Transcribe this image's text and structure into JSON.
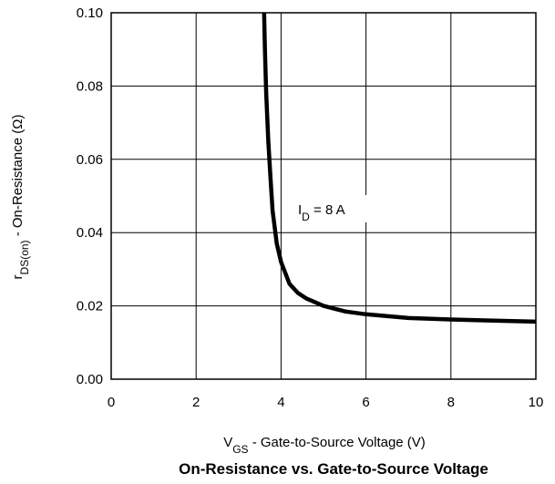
{
  "chart_data": {
    "type": "line",
    "title": "On-Resistance vs. Gate-to-Source Voltage",
    "xlabel": {
      "main": "V",
      "sub": "GS",
      "rest": " -  Gate-to-Source Voltage (V)"
    },
    "ylabel": {
      "main": "r",
      "sub": "DS(on)",
      "rest": " -   On-Resistance (Ω)"
    },
    "xlim": [
      0,
      10
    ],
    "ylim": [
      0,
      0.1
    ],
    "grid": true,
    "x_ticks": [
      0,
      2,
      4,
      6,
      8,
      10
    ],
    "x_tick_labels": [
      "0",
      "2",
      "4",
      "6",
      "8",
      "10"
    ],
    "y_ticks": [
      0,
      0.02,
      0.04,
      0.06,
      0.08,
      0.1
    ],
    "y_tick_labels": [
      "0.00",
      "0.02",
      "0.04",
      "0.06",
      "0.08",
      "0.10"
    ],
    "annotation": {
      "main": "I",
      "sub": "D",
      "rest": " = 8 A"
    },
    "series": [
      {
        "x": [
          3.6,
          3.62,
          3.65,
          3.7,
          3.75,
          3.8,
          3.9,
          4.0,
          4.2,
          4.4,
          4.6,
          5.0,
          5.5,
          6.0,
          7.0,
          8.0,
          9.0,
          10.0
        ],
        "y": [
          0.1,
          0.09,
          0.078,
          0.065,
          0.055,
          0.046,
          0.037,
          0.032,
          0.026,
          0.0235,
          0.022,
          0.02,
          0.0185,
          0.0177,
          0.0167,
          0.0163,
          0.016,
          0.0157
        ]
      }
    ]
  }
}
